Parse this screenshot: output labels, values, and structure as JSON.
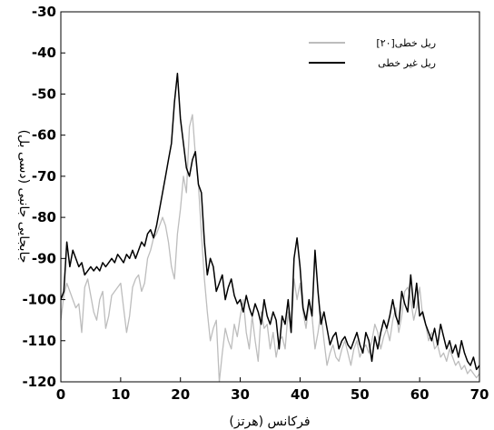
{
  "chart_data": {
    "type": "line",
    "title": "",
    "xlabel": "فرکانس (هرتز)",
    "ylabel": "جابجایی جانبی (دسی بل)",
    "xlim": [
      0,
      70
    ],
    "ylim": [
      -120,
      -30
    ],
    "x_ticks": [
      "0",
      "10",
      "20",
      "30",
      "40",
      "50",
      "60",
      "70"
    ],
    "y_ticks": [
      "-30",
      "-40",
      "-50",
      "-60",
      "-70",
      "-80",
      "-90",
      "-100",
      "-110",
      "-120"
    ],
    "grid": false,
    "legend_position": "top-right",
    "series": [
      {
        "name": "ریل خطی[۲۰]",
        "color": "#bdbdbd",
        "x": [
          0,
          0.5,
          1,
          1.5,
          2,
          2.5,
          3,
          3.5,
          4,
          4.5,
          5,
          5.5,
          6,
          6.5,
          7,
          7.5,
          8,
          8.5,
          9,
          9.5,
          10,
          10.5,
          11,
          11.5,
          12,
          12.5,
          13,
          13.5,
          14,
          14.5,
          15,
          15.5,
          16,
          16.5,
          17,
          17.5,
          18,
          18.5,
          19,
          19.5,
          20,
          20.5,
          21,
          21.5,
          22,
          22.5,
          23,
          23.5,
          24,
          24.5,
          25,
          25.5,
          26,
          26.5,
          27,
          27.5,
          28,
          28.5,
          29,
          29.5,
          30,
          30.5,
          31,
          31.5,
          32,
          32.5,
          33,
          33.5,
          34,
          34.5,
          35,
          35.5,
          36,
          36.5,
          37,
          37.5,
          38,
          38.5,
          39,
          39.5,
          40,
          40.5,
          41,
          41.5,
          42,
          42.5,
          43,
          43.5,
          44,
          44.5,
          45,
          45.5,
          46,
          46.5,
          47,
          47.5,
          48,
          48.5,
          49,
          49.5,
          50,
          50.5,
          51,
          51.5,
          52,
          52.5,
          53,
          53.5,
          54,
          54.5,
          55,
          55.5,
          56,
          56.5,
          57,
          57.5,
          58,
          58.5,
          59,
          59.5,
          60,
          60.5,
          61,
          61.5,
          62,
          62.5,
          63,
          63.5,
          64,
          64.5,
          65,
          65.5,
          66,
          66.5,
          67,
          67.5,
          68,
          68.5,
          69,
          69.5,
          70
        ],
        "values": [
          -105,
          -99,
          -96,
          -98,
          -100,
          -102,
          -101,
          -108,
          -97,
          -95,
          -99,
          -103,
          -105,
          -100,
          -98,
          -107,
          -104,
          -99,
          -98,
          -97,
          -96,
          -102,
          -108,
          -104,
          -97,
          -95,
          -94,
          -98,
          -96,
          -90,
          -88,
          -85,
          -84,
          -82,
          -80,
          -82,
          -86,
          -92,
          -95,
          -84,
          -78,
          -70,
          -74,
          -58,
          -55,
          -65,
          -72,
          -84,
          -95,
          -103,
          -110,
          -107,
          -105,
          -120,
          -113,
          -107,
          -110,
          -112,
          -106,
          -109,
          -104,
          -100,
          -108,
          -112,
          -104,
          -110,
          -115,
          -103,
          -107,
          -106,
          -112,
          -108,
          -114,
          -110,
          -109,
          -112,
          -103,
          -108,
          -95,
          -100,
          -96,
          -103,
          -107,
          -101,
          -104,
          -112,
          -108,
          -103,
          -110,
          -116,
          -113,
          -111,
          -114,
          -115,
          -112,
          -110,
          -113,
          -116,
          -112,
          -110,
          -114,
          -112,
          -111,
          -113,
          -110,
          -106,
          -108,
          -112,
          -109,
          -107,
          -110,
          -105,
          -102,
          -108,
          -104,
          -98,
          -97,
          -100,
          -105,
          -102,
          -97,
          -104,
          -106,
          -110,
          -108,
          -112,
          -111,
          -114,
          -113,
          -115,
          -112,
          -114,
          -116,
          -115,
          -117,
          -116,
          -118,
          -117,
          -118,
          -119,
          -118
        ]
      },
      {
        "name": "ریل غیر خطی",
        "color": "#000000",
        "x": [
          0,
          0.5,
          1,
          1.5,
          2,
          2.5,
          3,
          3.5,
          4,
          4.5,
          5,
          5.5,
          6,
          6.5,
          7,
          7.5,
          8,
          8.5,
          9,
          9.5,
          10,
          10.5,
          11,
          11.5,
          12,
          12.5,
          13,
          13.5,
          14,
          14.5,
          15,
          15.5,
          16,
          16.5,
          17,
          17.5,
          18,
          18.5,
          19,
          19.5,
          20,
          20.5,
          21,
          21.5,
          22,
          22.5,
          23,
          23.5,
          24,
          24.5,
          25,
          25.5,
          26,
          26.5,
          27,
          27.5,
          28,
          28.5,
          29,
          29.5,
          30,
          30.5,
          31,
          31.5,
          32,
          32.5,
          33,
          33.5,
          34,
          34.5,
          35,
          35.5,
          36,
          36.5,
          37,
          37.5,
          38,
          38.5,
          39,
          39.5,
          40,
          40.5,
          41,
          41.5,
          42,
          42.5,
          43,
          43.5,
          44,
          44.5,
          45,
          45.5,
          46,
          46.5,
          47,
          47.5,
          48,
          48.5,
          49,
          49.5,
          50,
          50.5,
          51,
          51.5,
          52,
          52.5,
          53,
          53.5,
          54,
          54.5,
          55,
          55.5,
          56,
          56.5,
          57,
          57.5,
          58,
          58.5,
          59,
          59.5,
          60,
          60.5,
          61,
          61.5,
          62,
          62.5,
          63,
          63.5,
          64,
          64.5,
          65,
          65.5,
          66,
          66.5,
          67,
          67.5,
          68,
          68.5,
          69,
          69.5,
          70
        ],
        "values": [
          -100,
          -98,
          -86,
          -92,
          -88,
          -90,
          -92,
          -91,
          -94,
          -93,
          -92,
          -93,
          -92,
          -93,
          -91,
          -92,
          -91,
          -90,
          -91,
          -89,
          -90,
          -91,
          -89,
          -90,
          -88,
          -90,
          -88,
          -86,
          -87,
          -84,
          -83,
          -85,
          -82,
          -78,
          -74,
          -70,
          -66,
          -62,
          -52,
          -45,
          -56,
          -62,
          -68,
          -70,
          -66,
          -64,
          -72,
          -74,
          -86,
          -94,
          -90,
          -92,
          -98,
          -96,
          -94,
          -100,
          -97,
          -95,
          -99,
          -101,
          -100,
          -103,
          -99,
          -102,
          -104,
          -101,
          -103,
          -106,
          -100,
          -104,
          -106,
          -103,
          -105,
          -112,
          -104,
          -106,
          -100,
          -108,
          -90,
          -85,
          -92,
          -102,
          -105,
          -100,
          -104,
          -88,
          -98,
          -106,
          -103,
          -107,
          -111,
          -109,
          -108,
          -112,
          -110,
          -109,
          -111,
          -112,
          -110,
          -108,
          -111,
          -113,
          -108,
          -110,
          -115,
          -109,
          -112,
          -108,
          -105,
          -107,
          -104,
          -100,
          -104,
          -106,
          -98,
          -101,
          -103,
          -94,
          -102,
          -96,
          -104,
          -103,
          -106,
          -108,
          -110,
          -107,
          -111,
          -106,
          -109,
          -112,
          -110,
          -113,
          -111,
          -114,
          -110,
          -113,
          -115,
          -116,
          -114,
          -117,
          -116
        ]
      }
    ]
  }
}
